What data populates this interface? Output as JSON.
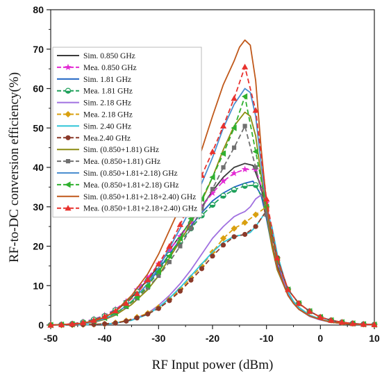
{
  "chart_data": {
    "type": "line",
    "xlabel": "RF Input power (dBm)",
    "ylabel": "RF-to-DC conversion efficiency(%)",
    "xlim": [
      -50,
      10
    ],
    "ylim": [
      0,
      80
    ],
    "xticks": [
      -50,
      -40,
      -30,
      -20,
      -10,
      0,
      10
    ],
    "yticks": [
      0,
      10,
      20,
      30,
      40,
      50,
      60,
      70,
      80
    ],
    "grid": false,
    "legend_position": "upper-left",
    "series": [
      {
        "name": "Sim. 0.850 GHz",
        "color": "#3a3a3a",
        "line": "solid",
        "marker": null,
        "x": [
          -50,
          -45,
          -42,
          -40,
          -38,
          -35,
          -32,
          -30,
          -28,
          -25,
          -22,
          -20,
          -18,
          -16,
          -14,
          -12.5,
          -11,
          -10,
          -9,
          -8,
          -6,
          -5,
          -4,
          -2,
          0,
          2,
          5,
          8,
          10
        ],
        "y": [
          0,
          0.3,
          1,
          2,
          3.5,
          7,
          11.5,
          15,
          19,
          24.5,
          30,
          34,
          37.5,
          40,
          41,
          40.5,
          35,
          28,
          21,
          15,
          8,
          6,
          4.5,
          2.5,
          1.5,
          0.8,
          0.4,
          0.2,
          0.1
        ]
      },
      {
        "name": "Mea. 0.850 GHz",
        "color": "#e32bd3",
        "line": "dash",
        "marker": "star",
        "x": [
          -50,
          -48,
          -46,
          -44,
          -42,
          -40,
          -38,
          -36,
          -34,
          -32,
          -30,
          -28,
          -26,
          -24,
          -22,
          -20,
          -18,
          -16,
          -14,
          -12,
          -10,
          -8,
          -6,
          -4,
          -2,
          0,
          2,
          4,
          6,
          8,
          10
        ],
        "y": [
          0,
          0.1,
          0.3,
          0.8,
          1.5,
          2.5,
          4,
          6,
          9,
          12,
          15.5,
          19,
          22.5,
          26,
          30,
          33.5,
          36.5,
          38.5,
          39.5,
          39.5,
          31,
          17,
          9,
          5.5,
          3.5,
          2,
          1.2,
          0.7,
          0.4,
          0.2,
          0.1
        ]
      },
      {
        "name": "Sim. 1.81 GHz",
        "color": "#1f63c4",
        "line": "solid",
        "marker": null,
        "x": [
          -50,
          -45,
          -42,
          -40,
          -38,
          -35,
          -32,
          -30,
          -28,
          -25,
          -22,
          -20,
          -18,
          -16,
          -14,
          -12.5,
          -11,
          -10,
          -9,
          -8,
          -6,
          -5,
          -4,
          -2,
          0,
          2,
          5,
          8,
          10
        ],
        "y": [
          0,
          0.2,
          0.8,
          1.6,
          2.8,
          6,
          10.5,
          14,
          18,
          23.5,
          28.5,
          31.5,
          33.5,
          35,
          36,
          36.5,
          33,
          27,
          20,
          14,
          7.5,
          5.5,
          4,
          2.2,
          1.3,
          0.7,
          0.3,
          0.15,
          0.1
        ]
      },
      {
        "name": "Mea. 1.81 GHz",
        "color": "#1fa05a",
        "line": "dash",
        "marker": "circle-half",
        "x": [
          -50,
          -48,
          -46,
          -44,
          -42,
          -40,
          -38,
          -36,
          -34,
          -32,
          -30,
          -28,
          -26,
          -24,
          -22,
          -20,
          -18,
          -16,
          -14,
          -12,
          -10,
          -8,
          -6,
          -4,
          -2,
          0,
          2,
          4,
          6,
          8,
          10
        ],
        "y": [
          0,
          0.1,
          0.3,
          0.7,
          1.4,
          2.3,
          3.8,
          5.7,
          8.5,
          11.3,
          14.5,
          17.8,
          21,
          24.5,
          27.8,
          30.5,
          32.8,
          34.3,
          35.3,
          35.5,
          30,
          17,
          9,
          5.5,
          3.5,
          2,
          1.2,
          0.7,
          0.4,
          0.2,
          0.1
        ]
      },
      {
        "name": "Sim. 2.18 GHz",
        "color": "#a070e0",
        "line": "solid",
        "marker": null,
        "x": [
          -50,
          -45,
          -40,
          -38,
          -35,
          -32,
          -30,
          -28,
          -26,
          -24,
          -22,
          -20,
          -18,
          -16,
          -15,
          -14,
          -13,
          -12,
          -11,
          -10,
          -9,
          -8,
          -6,
          -5,
          -4,
          -2,
          0,
          2,
          5,
          8,
          10
        ],
        "y": [
          0,
          0.05,
          0.2,
          0.5,
          1.3,
          3,
          5,
          7.5,
          10.5,
          14,
          18,
          22,
          25,
          27.5,
          28.2,
          28.8,
          30,
          32,
          33,
          31,
          24,
          16,
          8,
          5.5,
          4,
          2.2,
          1.3,
          0.7,
          0.3,
          0.15,
          0.1
        ]
      },
      {
        "name": "Mea. 2.18 GHz",
        "color": "#d9a010",
        "line": "dash",
        "marker": "diamond",
        "x": [
          -50,
          -48,
          -46,
          -44,
          -42,
          -40,
          -38,
          -36,
          -34,
          -32,
          -30,
          -28,
          -26,
          -24,
          -22,
          -20,
          -18,
          -16,
          -14,
          -12,
          -10,
          -8,
          -6,
          -4,
          -2,
          0,
          2,
          4,
          6,
          8,
          10
        ],
        "y": [
          0,
          0,
          0.05,
          0.1,
          0.15,
          0.3,
          0.6,
          1.1,
          2,
          3,
          4.5,
          6.5,
          9,
          12,
          15,
          18.5,
          22,
          24.5,
          26,
          28,
          30,
          17,
          9,
          5.5,
          3.5,
          2,
          1.2,
          0.7,
          0.4,
          0.2,
          0.1
        ]
      },
      {
        "name": "Sim. 2.40 GHz",
        "color": "#2ec4d8",
        "line": "solid",
        "marker": null,
        "x": [
          -50,
          -45,
          -40,
          -38,
          -35,
          -32,
          -30,
          -28,
          -26,
          -24,
          -22,
          -20,
          -18,
          -16,
          -14,
          -13,
          -12,
          -11,
          -10,
          -9,
          -8,
          -6,
          -5,
          -4,
          -2,
          0,
          2,
          5,
          8,
          10
        ],
        "y": [
          0,
          0.05,
          0.2,
          0.5,
          1.2,
          2.7,
          4.5,
          6.8,
          9.5,
          12.5,
          15.5,
          18.5,
          21,
          22.5,
          23,
          23.5,
          25,
          27,
          29,
          25,
          18,
          8.5,
          6,
          4.5,
          2.5,
          1.5,
          0.8,
          0.4,
          0.2,
          0.1
        ]
      },
      {
        "name": "Mea.2.40 GHz",
        "color": "#8b3a2a",
        "line": "dash",
        "marker": "circle",
        "x": [
          -50,
          -48,
          -46,
          -44,
          -42,
          -40,
          -38,
          -36,
          -34,
          -32,
          -30,
          -28,
          -26,
          -24,
          -22,
          -20,
          -18,
          -16,
          -14,
          -12,
          -10,
          -8,
          -6,
          -4,
          -2,
          0,
          2,
          4,
          6,
          8,
          10
        ],
        "y": [
          0,
          0,
          0.05,
          0.1,
          0.15,
          0.3,
          0.5,
          1,
          1.8,
          2.8,
          4.2,
          6.2,
          8.6,
          11.4,
          14.3,
          17.5,
          20.3,
          22.4,
          23,
          25,
          29,
          17,
          9,
          5.5,
          3.5,
          2,
          1.2,
          0.7,
          0.4,
          0.2,
          0.1
        ]
      },
      {
        "name": "Sim. (0.850+1.81) GHz",
        "color": "#8c8c10",
        "line": "solid",
        "marker": null,
        "x": [
          -50,
          -45,
          -42,
          -40,
          -38,
          -35,
          -32,
          -30,
          -28,
          -25,
          -22,
          -20,
          -18,
          -16,
          -14,
          -13,
          -12,
          -11,
          -10,
          -9,
          -8,
          -6,
          -5,
          -4,
          -2,
          0,
          2,
          5,
          8,
          10
        ],
        "y": [
          0,
          0.2,
          0.7,
          1.4,
          2.5,
          5.2,
          9,
          12.5,
          17,
          23.5,
          31.5,
          37.5,
          44.5,
          50.5,
          54,
          53,
          48,
          38,
          28,
          20,
          14,
          7.5,
          5.5,
          4,
          2.3,
          1.4,
          0.7,
          0.3,
          0.15,
          0.1
        ]
      },
      {
        "name": "Mea. (0.850+1.81) GHz",
        "color": "#707070",
        "line": "dash",
        "marker": "square",
        "x": [
          -50,
          -48,
          -46,
          -44,
          -42,
          -40,
          -38,
          -36,
          -34,
          -32,
          -30,
          -28,
          -26,
          -24,
          -22,
          -20,
          -18,
          -16,
          -14,
          -12,
          -10,
          -8,
          -6,
          -4,
          -2,
          0,
          2,
          4,
          6,
          8,
          10
        ],
        "y": [
          0,
          0.1,
          0.2,
          0.5,
          1,
          1.8,
          3,
          4.6,
          6.8,
          9.5,
          12.5,
          16,
          20,
          24.5,
          29.5,
          34.5,
          40,
          45,
          50.5,
          40,
          28,
          16,
          9,
          5.5,
          3.5,
          2,
          1.2,
          0.7,
          0.4,
          0.2,
          0.1
        ]
      },
      {
        "name": "Sim. (0.850+1.81+2.18) GHz",
        "color": "#4a8ed0",
        "line": "solid",
        "marker": null,
        "x": [
          -50,
          -45,
          -42,
          -40,
          -38,
          -35,
          -32,
          -30,
          -28,
          -25,
          -22,
          -20,
          -18,
          -16,
          -14,
          -13,
          -12,
          -11,
          -10,
          -9,
          -8,
          -6,
          -5,
          -4,
          -2,
          0,
          2,
          5,
          8,
          10
        ],
        "y": [
          0,
          0.2,
          0.8,
          1.6,
          2.8,
          6,
          10.5,
          14.5,
          19.5,
          27,
          36,
          42.5,
          50,
          56,
          60,
          59,
          53,
          41,
          30,
          21,
          14.5,
          7.5,
          5.5,
          4,
          2.3,
          1.4,
          0.7,
          0.3,
          0.15,
          0.1
        ]
      },
      {
        "name": "Mea. (0.850+1.81+2.18) GHz",
        "color": "#30b030",
        "line": "dash",
        "marker": "triangle-left",
        "x": [
          -50,
          -48,
          -46,
          -44,
          -42,
          -40,
          -38,
          -36,
          -34,
          -32,
          -30,
          -28,
          -26,
          -24,
          -22,
          -20,
          -18,
          -16,
          -14,
          -12,
          -10,
          -8,
          -6,
          -4,
          -2,
          0,
          2,
          4,
          6,
          8,
          10
        ],
        "y": [
          0,
          0.1,
          0.2,
          0.5,
          1,
          1.8,
          3,
          4.8,
          7,
          10,
          13.5,
          17.5,
          22,
          27,
          32,
          37.5,
          43.5,
          50,
          58,
          44,
          30,
          16.5,
          9,
          5.5,
          3.5,
          2,
          1.2,
          0.7,
          0.4,
          0.2,
          0.1
        ]
      },
      {
        "name": "Sim. (0.850+1.81+2.18+2.40) GHz",
        "color": "#c0581a",
        "line": "solid",
        "marker": null,
        "x": [
          -50,
          -45,
          -42,
          -40,
          -38,
          -35,
          -32,
          -30,
          -28,
          -25,
          -22,
          -20,
          -18,
          -16,
          -15,
          -14,
          -13,
          -12,
          -11,
          -10,
          -9,
          -8,
          -6,
          -5,
          -4,
          -2,
          0,
          2,
          5,
          8,
          10
        ],
        "y": [
          0,
          0.3,
          1,
          2,
          3.5,
          7.5,
          13,
          18,
          24,
          33,
          44.5,
          53,
          61,
          67,
          70.5,
          72.3,
          71,
          62,
          45,
          31,
          21,
          14.5,
          7.5,
          5.5,
          4,
          2.3,
          1.4,
          0.7,
          0.3,
          0.15,
          0.1
        ]
      },
      {
        "name": "Mea. (0.850+1.81+2.18+2.40) GHz",
        "color": "#e8322e",
        "line": "dash",
        "marker": "triangle-up",
        "x": [
          -50,
          -48,
          -46,
          -44,
          -42,
          -40,
          -38,
          -36,
          -34,
          -32,
          -30,
          -28,
          -26,
          -24,
          -22,
          -20,
          -18,
          -16,
          -14,
          -12,
          -10,
          -8,
          -6,
          -4,
          -2,
          0,
          2,
          4,
          6,
          8,
          10
        ],
        "y": [
          0,
          0.1,
          0.3,
          0.6,
          1.2,
          2.2,
          3.6,
          5.5,
          8,
          11.5,
          15.5,
          20,
          25.5,
          31.5,
          38,
          44,
          50.5,
          57.5,
          65.5,
          54.5,
          32,
          17,
          9,
          5.5,
          3.5,
          2,
          1.2,
          0.7,
          0.4,
          0.2,
          0.1
        ]
      }
    ]
  }
}
